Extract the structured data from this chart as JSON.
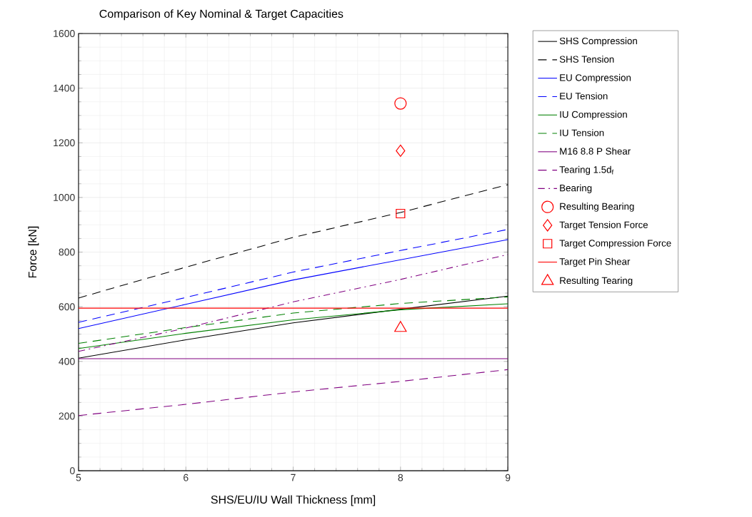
{
  "chart_data": {
    "type": "line",
    "title": "Comparison of Key Nominal & Target Capacities",
    "xlabel": "SHS/EU/IU Wall Thickness [mm]",
    "ylabel": "Force [kN]",
    "x": [
      5,
      6,
      7,
      8,
      9
    ],
    "xlim": [
      5,
      9
    ],
    "xticks": [
      5,
      6,
      7,
      8,
      9
    ],
    "ylim": [
      0,
      1600
    ],
    "yticks": [
      0,
      200,
      400,
      600,
      800,
      1000,
      1200,
      1400,
      1600
    ],
    "grid": true,
    "legend": "top right",
    "marker": "none",
    "series": [
      {
        "name": "SHS Compression",
        "color": "#000000",
        "line_style": "solid",
        "values": [
          412,
          479,
          541,
          591,
          639
        ]
      },
      {
        "name": "SHS Tension",
        "color": "#000000",
        "line_style": "dashed",
        "values": [
          632,
          745,
          854,
          945,
          1047
        ]
      },
      {
        "name": "EU Compression",
        "color": "#0000ff",
        "line_style": "solid",
        "values": [
          520,
          609,
          698,
          772,
          846
        ]
      },
      {
        "name": "EU Tension",
        "color": "#0000ff",
        "line_style": "dashed",
        "values": [
          543,
          634,
          727,
          806,
          883
        ]
      },
      {
        "name": "IU Compression",
        "color": "#008000",
        "line_style": "solid",
        "values": [
          447,
          503,
          552,
          589,
          611
        ]
      },
      {
        "name": "IU Tension",
        "color": "#008000",
        "line_style": "dashed",
        "values": [
          466,
          524,
          577,
          612,
          636
        ]
      },
      {
        "name": "M16 8.8 P Shear",
        "color": "#800080",
        "line_style": "solid",
        "values": [
          410,
          410,
          410,
          410,
          410
        ]
      },
      {
        "name": "Tearing 1.5d$_{f}$",
        "color": "#800080",
        "line_style": "dashed",
        "values": [
          202,
          243,
          288,
          327,
          370
        ]
      },
      {
        "name": "Bearing",
        "color": "#800080",
        "line_style": "dashdot",
        "values": [
          437,
          522,
          618,
          700,
          791
        ]
      },
      {
        "name": "Resulting Bearing",
        "type": "scatter",
        "color": "#ff0000",
        "marker": "circle",
        "values": [
          null,
          null,
          null,
          1344,
          null
        ]
      },
      {
        "name": "Target Tension Force",
        "type": "scatter",
        "color": "#ff0000",
        "marker": "diamond",
        "values": [
          null,
          null,
          null,
          1171,
          null
        ]
      },
      {
        "name": "Target Compression Force",
        "type": "scatter",
        "color": "#ff0000",
        "marker": "square",
        "values": [
          null,
          null,
          null,
          941,
          null
        ]
      },
      {
        "name": "Target Pin Shear",
        "color": "#ff0000",
        "line_style": "solid",
        "values": [
          595,
          595,
          595,
          595,
          595
        ]
      },
      {
        "name": "Resulting Tearing",
        "type": "scatter",
        "color": "#ff0000",
        "marker": "triangle",
        "values": [
          null,
          null,
          null,
          522,
          null
        ]
      }
    ]
  }
}
